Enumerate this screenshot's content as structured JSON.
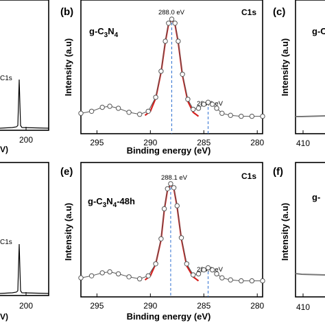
{
  "figure": {
    "panels": [
      {
        "id": "a",
        "letter": "",
        "visible_tick": "200",
        "peak_label": "C1s",
        "axis_title_fragment": "V)"
      },
      {
        "id": "b",
        "letter": "(b)",
        "sample_prefix": "g-C",
        "sample_sub1": "3",
        "sample_mid": "N",
        "sample_sub2": "4",
        "sample_suffix": "",
        "core_level": "C1s",
        "ylabel": "Intensity (a.u)",
        "xlabel": "Binding energy (eV)",
        "peak_main": "288.0 eV",
        "peak_minor": "284.6 eV"
      },
      {
        "id": "c",
        "letter": "(c)",
        "visible_tick": "410",
        "ylabel": "Intensity (a.u)",
        "sample_fragment": "g-C"
      },
      {
        "id": "d",
        "letter": "",
        "visible_tick": "200",
        "peak_label": "C1s",
        "axis_title_fragment": "V)"
      },
      {
        "id": "e",
        "letter": "(e)",
        "sample_prefix": "g-C",
        "sample_sub1": "3",
        "sample_mid": "N",
        "sample_sub2": "4",
        "sample_suffix": "-48h",
        "core_level": "C1s",
        "ylabel": "Intensity (a.u)",
        "xlabel": "Binding energy (eV)",
        "peak_main": "288.1 eV",
        "peak_minor": "284.6 eV"
      },
      {
        "id": "f",
        "letter": "(f)",
        "visible_tick": "410",
        "ylabel": "Intensity (a.u)",
        "sample_fragment": "g-"
      }
    ]
  },
  "chart_data": [
    {
      "panel": "b",
      "type": "line",
      "title": "C1s",
      "xlabel": "Binding energy (eV)",
      "ylabel": "Intensity (a.u)",
      "xlim": [
        296.5,
        279.5
      ],
      "x_reversed": true,
      "ylim": [
        0,
        1
      ],
      "xticks": [
        295,
        290,
        285,
        280
      ],
      "annotations": [
        "288.0 eV",
        "284.6 eV",
        "g-C3N4"
      ],
      "reference_lines_x": [
        288.0,
        284.6
      ],
      "series": [
        {
          "style": "markers",
          "x": [
            296.5,
            295.5,
            294.5,
            293.8,
            293.0,
            292.0,
            291.0,
            290.2,
            289.5,
            289.0,
            288.6,
            288.3,
            288.0,
            287.7,
            287.4,
            287.0,
            286.5,
            286.0,
            285.5,
            285.0,
            284.6,
            284.2,
            283.8,
            283.3,
            282.5,
            281.5,
            280.5,
            279.5
          ],
          "y": [
            0.06,
            0.08,
            0.12,
            0.13,
            0.11,
            0.07,
            0.05,
            0.08,
            0.22,
            0.48,
            0.78,
            0.96,
            1.0,
            0.96,
            0.78,
            0.45,
            0.2,
            0.1,
            0.11,
            0.15,
            0.17,
            0.15,
            0.11,
            0.06,
            0.04,
            0.03,
            0.03,
            0.03
          ]
        },
        {
          "style": "fit-line",
          "x": [
            290.5,
            290.0,
            289.5,
            289.0,
            288.6,
            288.3,
            288.0,
            287.7,
            287.4,
            287.0,
            286.5,
            286.0,
            285.5
          ],
          "y": [
            0.04,
            0.08,
            0.21,
            0.47,
            0.77,
            0.95,
            0.99,
            0.95,
            0.77,
            0.44,
            0.18,
            0.07,
            0.03
          ]
        }
      ]
    },
    {
      "panel": "e",
      "type": "line",
      "title": "C1s",
      "xlabel": "Binding energy (eV)",
      "ylabel": "Intensity (a.u)",
      "xlim": [
        296.5,
        279.5
      ],
      "x_reversed": true,
      "ylim": [
        0,
        1
      ],
      "xticks": [
        295,
        290,
        285,
        280
      ],
      "annotations": [
        "288.1 eV",
        "284.6 eV",
        "g-C3N4-48h"
      ],
      "reference_lines_x": [
        288.1,
        284.6
      ],
      "series": [
        {
          "style": "markers",
          "x": [
            296.5,
            295.5,
            294.5,
            293.8,
            293.0,
            292.0,
            291.0,
            290.2,
            289.5,
            289.0,
            288.7,
            288.4,
            288.1,
            287.8,
            287.5,
            287.1,
            286.6,
            286.0,
            285.5,
            285.0,
            284.6,
            284.2,
            283.8,
            283.3,
            282.5,
            281.5,
            280.5,
            279.5
          ],
          "y": [
            0.06,
            0.08,
            0.11,
            0.12,
            0.1,
            0.07,
            0.05,
            0.08,
            0.2,
            0.45,
            0.75,
            0.95,
            1.0,
            0.96,
            0.78,
            0.46,
            0.2,
            0.09,
            0.1,
            0.14,
            0.16,
            0.14,
            0.1,
            0.06,
            0.04,
            0.03,
            0.03,
            0.03
          ]
        },
        {
          "style": "fit-line",
          "x": [
            290.5,
            290.0,
            289.5,
            289.0,
            288.7,
            288.4,
            288.1,
            287.8,
            287.5,
            287.1,
            286.6,
            286.0,
            285.5
          ],
          "y": [
            0.04,
            0.08,
            0.2,
            0.44,
            0.74,
            0.94,
            0.99,
            0.95,
            0.77,
            0.45,
            0.18,
            0.07,
            0.03
          ]
        }
      ]
    },
    {
      "panel": "a",
      "type": "line",
      "xticks": [
        200
      ],
      "annotations": [
        "C1s"
      ],
      "series": [
        {
          "style": "line",
          "note": "survey spectrum, partially visible"
        }
      ]
    },
    {
      "panel": "d",
      "type": "line",
      "xticks": [
        200
      ],
      "annotations": [
        "C1s"
      ],
      "series": [
        {
          "style": "line",
          "note": "survey spectrum, partially visible"
        }
      ]
    }
  ]
}
